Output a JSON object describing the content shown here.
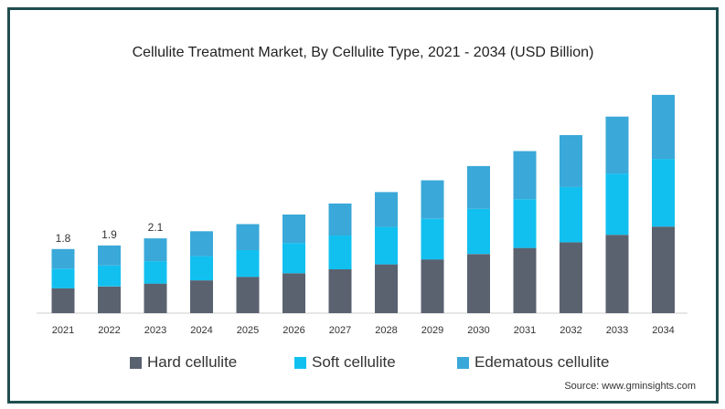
{
  "chart_data": {
    "type": "bar",
    "stacked": true,
    "title": "Cellulite Treatment Market, By Cellulite Type, 2021 - 2034 (USD Billion)",
    "categories": [
      "2021",
      "2022",
      "2023",
      "2024",
      "2025",
      "2026",
      "2027",
      "2028",
      "2029",
      "2030",
      "2031",
      "2032",
      "2033",
      "2034"
    ],
    "series": [
      {
        "name": "Hard cellulite",
        "color": "#5a6270",
        "values": [
          0.7,
          0.75,
          0.83,
          0.92,
          1.02,
          1.12,
          1.23,
          1.37,
          1.51,
          1.66,
          1.83,
          1.99,
          2.2,
          2.43
        ]
      },
      {
        "name": "Soft cellulite",
        "color": "#12c0f0",
        "values": [
          0.55,
          0.59,
          0.63,
          0.68,
          0.75,
          0.85,
          0.95,
          1.05,
          1.14,
          1.27,
          1.37,
          1.55,
          1.72,
          1.9
        ]
      },
      {
        "name": "Edematous cellulite",
        "color": "#3aa8d8",
        "values": [
          0.55,
          0.56,
          0.64,
          0.7,
          0.73,
          0.8,
          0.9,
          0.98,
          1.08,
          1.2,
          1.35,
          1.46,
          1.6,
          1.8
        ]
      }
    ],
    "data_labels": {
      "2021": "1.8",
      "2022": "1.9",
      "2023": "2.1"
    },
    "ylim": [
      0,
      7
    ],
    "xlabel": "",
    "ylabel": "",
    "grid": false,
    "legend_position": "bottom"
  },
  "legend": {
    "items": [
      "Hard cellulite",
      "Soft cellulite",
      "Edematous cellulite"
    ]
  },
  "source_text": "Source: www.gminsights.com"
}
